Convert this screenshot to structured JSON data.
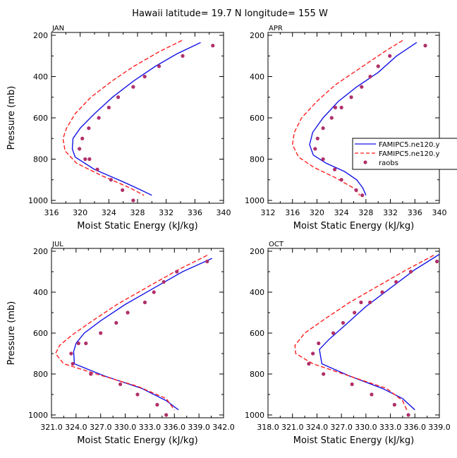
{
  "title": "Hawaii  latitude= 19.7 N longitude= 155 W",
  "colors": {
    "famipc5": "#1515e6",
    "famipc5_dash": "#ff1f1f",
    "raobs": "#b0306a"
  },
  "legend": {
    "entries": [
      "FAMIPC5.ne120.y",
      "FAMIPC5.ne120.y",
      "raobs"
    ],
    "placement": "right of APR panel"
  },
  "chart_data": [
    {
      "type": "line",
      "panel": "JAN",
      "xlabel": "Moist Static Energy (kJ/kg)",
      "ylabel": "Pressure (mb)",
      "xlim": [
        316,
        340
      ],
      "ylim": [
        1000,
        200
      ],
      "y_inverted": true,
      "xticks": [
        316,
        320,
        324,
        328,
        332,
        336,
        340
      ],
      "xtick_labels": [
        "316",
        "320",
        "324",
        "328",
        "332",
        "336",
        "340"
      ],
      "yticks": [
        200,
        400,
        600,
        800,
        1000
      ],
      "ytick_labels": [
        "200",
        "400",
        "600",
        "800",
        "1000"
      ],
      "series": [
        {
          "name": "FAMIPC5.ne120.y (solid)",
          "style": "solid",
          "x": [
            336.8,
            333.5,
            330.5,
            327.5,
            324.5,
            322.0,
            320.0,
            319.0,
            318.9,
            319.3,
            322.0,
            326.0,
            328.5,
            330.0
          ],
          "y": [
            235,
            290,
            350,
            420,
            500,
            580,
            650,
            700,
            750,
            790,
            850,
            910,
            950,
            975
          ]
        },
        {
          "name": "FAMIPC5.ne120.y (dashed)",
          "style": "dashed",
          "x": [
            334.2,
            331.0,
            327.5,
            324.5,
            321.5,
            319.3,
            318.1,
            317.6,
            317.9,
            319.5,
            323.0,
            327.0,
            328.9
          ],
          "y": [
            225,
            280,
            350,
            420,
            500,
            580,
            650,
            700,
            760,
            820,
            880,
            940,
            975
          ]
        },
        {
          "name": "raobs",
          "style": "points",
          "x": [
            338.5,
            334.3,
            331.0,
            329.0,
            327.4,
            325.3,
            324.0,
            322.6,
            321.2,
            320.3,
            319.9,
            320.7,
            321.3,
            322.4,
            324.3,
            325.9,
            327.4
          ],
          "y": [
            250,
            300,
            350,
            400,
            450,
            500,
            550,
            600,
            650,
            700,
            750,
            800,
            800,
            850,
            900,
            950,
            1000
          ]
        }
      ]
    },
    {
      "type": "line",
      "panel": "APR",
      "xlabel": "Moist Static Energy (kJ/kg)",
      "ylabel": "",
      "xlim": [
        312,
        340
      ],
      "ylim": [
        1000,
        200
      ],
      "y_inverted": true,
      "xticks": [
        312,
        316,
        320,
        324,
        328,
        332,
        336,
        340
      ],
      "xtick_labels": [
        "312",
        "316",
        "320",
        "324",
        "328",
        "332",
        "336",
        "340"
      ],
      "yticks": [
        200,
        400,
        600,
        800,
        1000
      ],
      "ytick_labels": [
        "200",
        "400",
        "600",
        "800",
        "1000"
      ],
      "series": [
        {
          "name": "FAMIPC5.ne120.y (solid)",
          "style": "solid",
          "x": [
            336.3,
            333.0,
            330.0,
            326.5,
            323.5,
            321.0,
            319.3,
            318.8,
            319.4,
            321.5,
            324.5,
            326.5,
            327.5,
            328.0
          ],
          "y": [
            235,
            300,
            380,
            450,
            520,
            600,
            670,
            730,
            780,
            820,
            860,
            900,
            940,
            975
          ]
        },
        {
          "name": "FAMIPC5.ne120.y (dashed)",
          "style": "dashed",
          "x": [
            334.0,
            331.0,
            327.0,
            323.0,
            320.0,
            317.5,
            316.3,
            316.0,
            317.0,
            319.5,
            323.0,
            326.0,
            327.0
          ],
          "y": [
            225,
            280,
            360,
            440,
            520,
            600,
            670,
            730,
            790,
            840,
            890,
            940,
            975
          ]
        },
        {
          "name": "raobs",
          "style": "points",
          "x": [
            337.7,
            331.9,
            330.0,
            328.7,
            327.3,
            325.6,
            324.0,
            323.0,
            322.4,
            321.0,
            320.1,
            319.7,
            321.0,
            322.9,
            324.0,
            326.4,
            327.4
          ],
          "y": [
            250,
            300,
            350,
            400,
            450,
            500,
            550,
            550,
            600,
            650,
            700,
            750,
            800,
            850,
            900,
            950,
            975
          ]
        }
      ]
    },
    {
      "type": "line",
      "panel": "JUL",
      "xlabel": "Moist Static Energy (kJ/kg)",
      "ylabel": "Pressure (mb)",
      "xlim": [
        321.0,
        342.0
      ],
      "ylim": [
        1000,
        200
      ],
      "y_inverted": true,
      "xticks": [
        321.0,
        324.0,
        327.0,
        330.0,
        333.0,
        336.0,
        339.0,
        342.0
      ],
      "xtick_labels": [
        "321.0",
        "324.0",
        "327.0",
        "330.0",
        "333.0",
        "336.0",
        "339.0",
        "342.0"
      ],
      "yticks": [
        200,
        400,
        600,
        800,
        1000
      ],
      "ytick_labels": [
        "200",
        "400",
        "600",
        "800",
        "1000"
      ],
      "series": [
        {
          "name": "FAMIPC5.ne120.y (solid)",
          "style": "solid",
          "x": [
            340.6,
            337.0,
            333.5,
            330.0,
            327.0,
            325.0,
            324.0,
            323.7,
            323.8,
            327.5,
            332.0,
            335.0,
            336.5
          ],
          "y": [
            235,
            300,
            380,
            460,
            540,
            600,
            650,
            690,
            750,
            810,
            870,
            930,
            975
          ]
        },
        {
          "name": "FAMIPC5.ne120.y (dashed)",
          "style": "dashed",
          "x": [
            340.0,
            336.5,
            332.5,
            329.0,
            326.0,
            323.5,
            322.0,
            321.5,
            322.5,
            326.5,
            331.5,
            335.0,
            336.0
          ],
          "y": [
            220,
            290,
            380,
            460,
            540,
            610,
            660,
            700,
            750,
            800,
            860,
            920,
            975
          ]
        },
        {
          "name": "raobs",
          "style": "points",
          "x": [
            340.0,
            336.3,
            334.7,
            333.5,
            332.4,
            330.3,
            328.9,
            327.0,
            325.2,
            324.3,
            323.4,
            323.6,
            325.8,
            329.4,
            331.5,
            333.9,
            335.0
          ],
          "y": [
            250,
            300,
            350,
            400,
            450,
            500,
            550,
            600,
            650,
            650,
            700,
            750,
            800,
            850,
            900,
            950,
            1000
          ]
        }
      ]
    },
    {
      "type": "line",
      "panel": "OCT",
      "xlabel": "Moist Static Energy (kJ/kg)",
      "ylabel": "",
      "xlim": [
        318.0,
        339.0
      ],
      "ylim": [
        1000,
        200
      ],
      "y_inverted": true,
      "xticks": [
        318.0,
        321.0,
        324.0,
        327.0,
        330.0,
        333.0,
        336.0,
        339.0
      ],
      "xtick_labels": [
        "318.0",
        "321.0",
        "324.0",
        "327.0",
        "330.0",
        "333.0",
        "336.0",
        "339.0"
      ],
      "yticks": [
        200,
        400,
        600,
        800,
        1000
      ],
      "ytick_labels": [
        "200",
        "400",
        "600",
        "800",
        "1000"
      ],
      "series": [
        {
          "name": "FAMIPC5.ne120.y (solid)",
          "style": "solid",
          "x": [
            339.0,
            336.0,
            333.0,
            330.0,
            327.5,
            325.5,
            324.3,
            324.6,
            328.0,
            332.0,
            334.5,
            336.0
          ],
          "y": [
            215,
            290,
            380,
            470,
            560,
            630,
            680,
            750,
            810,
            870,
            920,
            975
          ]
        },
        {
          "name": "FAMIPC5.ne120.y (dashed)",
          "style": "dashed",
          "x": [
            338.3,
            335.0,
            331.5,
            328.0,
            325.0,
            322.5,
            321.3,
            321.4,
            323.5,
            328.0,
            332.5,
            334.5,
            335.0
          ],
          "y": [
            220,
            290,
            370,
            450,
            530,
            600,
            660,
            700,
            750,
            810,
            870,
            930,
            975
          ]
        },
        {
          "name": "raobs",
          "style": "points",
          "x": [
            338.7,
            335.5,
            333.7,
            332.0,
            330.5,
            329.4,
            328.6,
            327.2,
            326.0,
            324.2,
            323.5,
            323.0,
            324.8,
            328.3,
            330.7,
            333.5,
            335.2
          ],
          "y": [
            250,
            300,
            350,
            400,
            450,
            450,
            500,
            550,
            600,
            650,
            700,
            750,
            800,
            850,
            900,
            950,
            1000
          ]
        }
      ]
    }
  ]
}
